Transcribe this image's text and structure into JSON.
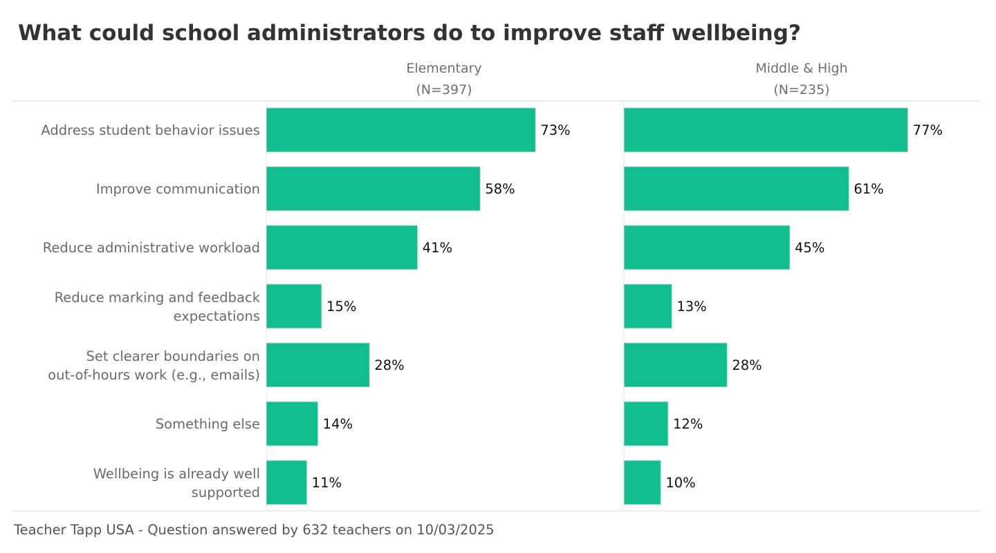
{
  "chart_data": {
    "type": "bar",
    "orientation": "horizontal",
    "title": "What could school administrators do to improve staff wellbeing?",
    "categories": [
      [
        "Address student behavior issues"
      ],
      [
        "Improve communication"
      ],
      [
        "Reduce administrative workload"
      ],
      [
        "Reduce marking and feedback",
        "expectations"
      ],
      [
        "Set clearer boundaries on",
        "out-of-hours work (e.g., emails)"
      ],
      [
        "Something else"
      ],
      [
        "Wellbeing is already well",
        "supported"
      ]
    ],
    "series": [
      {
        "name": "Elementary",
        "subtitle": "(N=397)",
        "values": [
          73,
          58,
          41,
          15,
          28,
          14,
          11
        ],
        "value_labels": [
          "73%",
          "58%",
          "41%",
          "15%",
          "28%",
          "14%",
          "11%"
        ]
      },
      {
        "name": "Middle & High",
        "subtitle": "(N=235)",
        "values": [
          77,
          61,
          45,
          13,
          28,
          12,
          10
        ],
        "value_labels": [
          "77%",
          "61%",
          "45%",
          "13%",
          "28%",
          "12%",
          "10%"
        ]
      }
    ],
    "xlim": [
      0,
      90
    ],
    "bar_color": "#12be8f",
    "footer": "Teacher Tapp USA - Question answered by 632 teachers on 10/03/2025"
  }
}
